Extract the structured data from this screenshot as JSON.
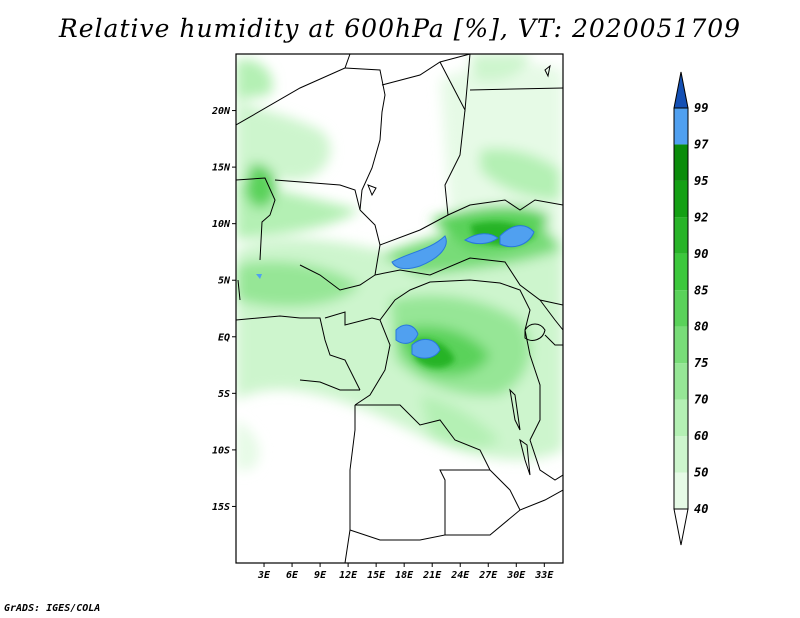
{
  "title": "Relative humidity at 600hPa [%], VT: 2020051709",
  "credit": "GrADS: IGES/COLA",
  "map": {
    "lon_range": [
      0,
      35
    ],
    "lat_range": [
      -20,
      25
    ],
    "lat_ticks": [
      {
        "value": 20,
        "label": "20N"
      },
      {
        "value": 15,
        "label": "15N"
      },
      {
        "value": 10,
        "label": "10N"
      },
      {
        "value": 5,
        "label": "5N"
      },
      {
        "value": 0,
        "label": "EQ"
      },
      {
        "value": -5,
        "label": "5S"
      },
      {
        "value": -10,
        "label": "10S"
      },
      {
        "value": -15,
        "label": "15S"
      }
    ],
    "lon_ticks": [
      {
        "value": 3,
        "label": "3E"
      },
      {
        "value": 6,
        "label": "6E"
      },
      {
        "value": 9,
        "label": "9E"
      },
      {
        "value": 12,
        "label": "12E"
      },
      {
        "value": 15,
        "label": "15E"
      },
      {
        "value": 18,
        "label": "18E"
      },
      {
        "value": 21,
        "label": "21E"
      },
      {
        "value": 24,
        "label": "24E"
      },
      {
        "value": 27,
        "label": "27E"
      },
      {
        "value": 30,
        "label": "30E"
      },
      {
        "value": 33,
        "label": "33E"
      }
    ]
  },
  "colorbar": {
    "levels": [
      {
        "label": "40",
        "color": "#e6fae6"
      },
      {
        "label": "50",
        "color": "#cdf5cd"
      },
      {
        "label": "60",
        "color": "#b4f0b4"
      },
      {
        "label": "70",
        "color": "#96e696"
      },
      {
        "label": "75",
        "color": "#78dc78"
      },
      {
        "label": "80",
        "color": "#5ad25a"
      },
      {
        "label": "85",
        "color": "#3cc83c"
      },
      {
        "label": "90",
        "color": "#28b428"
      },
      {
        "label": "92",
        "color": "#14a014"
      },
      {
        "label": "95",
        "color": "#0a8c0a"
      },
      {
        "label": "97",
        "color": "#50a0f0"
      },
      {
        "label": "99",
        "color": "#2878dc"
      }
    ],
    "top_color": "#1450b4",
    "bottom_color": "#ffffff"
  }
}
